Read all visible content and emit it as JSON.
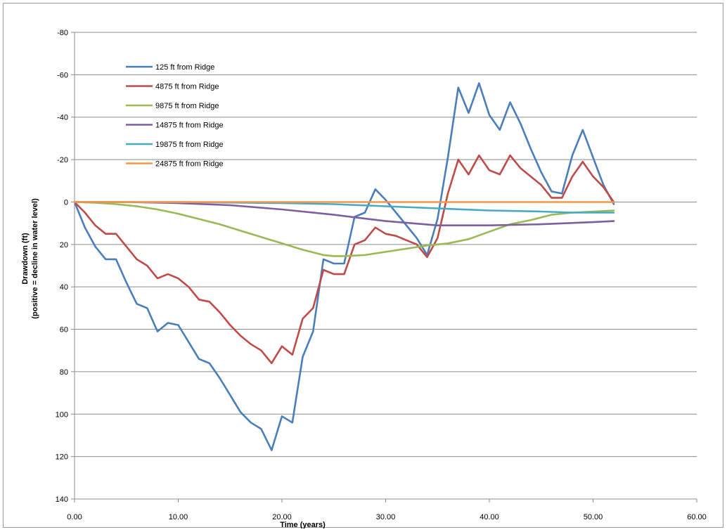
{
  "chart_data": {
    "type": "line",
    "title": "",
    "xlabel": "Time (years)",
    "ylabel": "Drawdown (ft)",
    "ylabel2": "(positive = decline in water level)",
    "xlim": [
      0,
      60
    ],
    "ylim": [
      140,
      -80
    ],
    "y_reversed": true,
    "grid": "horizontal",
    "legend_position": "top-left (inside plot)",
    "xticks": [
      "0.00",
      "10.00",
      "20.00",
      "30.00",
      "40.00",
      "50.00",
      "60.00"
    ],
    "yticks": [
      "-80",
      "-60",
      "-40",
      "-20",
      "0",
      "20",
      "40",
      "60",
      "80",
      "100",
      "120",
      "140"
    ],
    "series": [
      {
        "name": "125 ft from Ridge",
        "color": "#4a7ebb",
        "x": [
          0,
          1,
          2,
          3,
          4,
          5,
          6,
          7,
          8,
          9,
          10,
          11,
          12,
          13,
          14,
          15,
          16,
          17,
          18,
          19,
          20,
          21,
          22,
          23,
          24,
          25,
          26,
          27,
          28,
          29,
          30,
          31,
          32,
          33,
          34,
          35,
          36,
          37,
          38,
          39,
          40,
          41,
          42,
          43,
          44,
          45,
          46,
          47,
          48,
          49,
          50,
          51,
          52
        ],
        "y": [
          0,
          12,
          21,
          27,
          27,
          38,
          48,
          50,
          61,
          57,
          58,
          66,
          74,
          76,
          83,
          91,
          99,
          104,
          107,
          117,
          101,
          104,
          73,
          61,
          27,
          29,
          29,
          7,
          5,
          -6,
          -1,
          5,
          11,
          17,
          25,
          8,
          -21,
          -54,
          -42,
          -56,
          -41,
          -34,
          -47,
          -37,
          -25,
          -14,
          -5,
          -4,
          -22,
          -34,
          -21,
          -8,
          1
        ]
      },
      {
        "name": "4875 ft from Ridge",
        "color": "#be4b48",
        "x": [
          0,
          1,
          2,
          3,
          4,
          5,
          6,
          7,
          8,
          9,
          10,
          11,
          12,
          13,
          14,
          15,
          16,
          17,
          18,
          19,
          20,
          21,
          22,
          23,
          24,
          25,
          26,
          27,
          28,
          29,
          30,
          31,
          32,
          33,
          34,
          35,
          36,
          37,
          38,
          39,
          40,
          41,
          42,
          43,
          44,
          45,
          46,
          47,
          48,
          49,
          50,
          51,
          52
        ],
        "y": [
          0,
          5,
          11,
          15,
          15,
          21,
          27,
          30,
          36,
          34,
          36,
          40,
          46,
          47,
          52,
          58,
          63,
          67,
          70,
          76,
          68,
          72,
          55,
          50,
          32,
          34,
          34,
          20,
          18,
          12,
          15,
          16,
          18,
          20,
          26,
          17,
          -4,
          -20,
          -13,
          -22,
          -15,
          -13,
          -22,
          -16,
          -12,
          -8,
          -2,
          -2,
          -12,
          -19,
          -12,
          -7,
          0
        ]
      },
      {
        "name": "9875 ft from Ridge",
        "color": "#98b954",
        "x": [
          0,
          2,
          4,
          6,
          8,
          10,
          12,
          14,
          16,
          18,
          20,
          22,
          24,
          25,
          26,
          28,
          30,
          32,
          34,
          36,
          38,
          40,
          42,
          44,
          46,
          48,
          50,
          52
        ],
        "y": [
          0,
          0.3,
          1,
          2,
          3.5,
          5.5,
          8,
          10.5,
          13.5,
          16.5,
          19.5,
          22.5,
          25,
          25.5,
          25.5,
          25,
          23.5,
          22,
          20.5,
          19.5,
          17.5,
          14,
          10.5,
          8.5,
          6,
          5,
          4.5,
          4
        ]
      },
      {
        "name": "14875 ft from Ridge",
        "color": "#7d5fa0",
        "x": [
          0,
          5,
          10,
          15,
          20,
          25,
          30,
          35,
          40,
          45,
          50,
          52
        ],
        "y": [
          0,
          0,
          0.5,
          1.5,
          3.5,
          6,
          9,
          11,
          11,
          10.5,
          9.5,
          9
        ]
      },
      {
        "name": "19875 ft from Ridge",
        "color": "#46aac5",
        "x": [
          0,
          10,
          20,
          25,
          30,
          35,
          40,
          45,
          48,
          52
        ],
        "y": [
          0,
          0,
          0.5,
          1,
          2,
          3,
          4,
          4.5,
          5,
          5
        ]
      },
      {
        "name": "24875 ft from Ridge",
        "color": "#f79646",
        "x": [
          0,
          52
        ],
        "y": [
          0,
          0
        ]
      }
    ]
  }
}
